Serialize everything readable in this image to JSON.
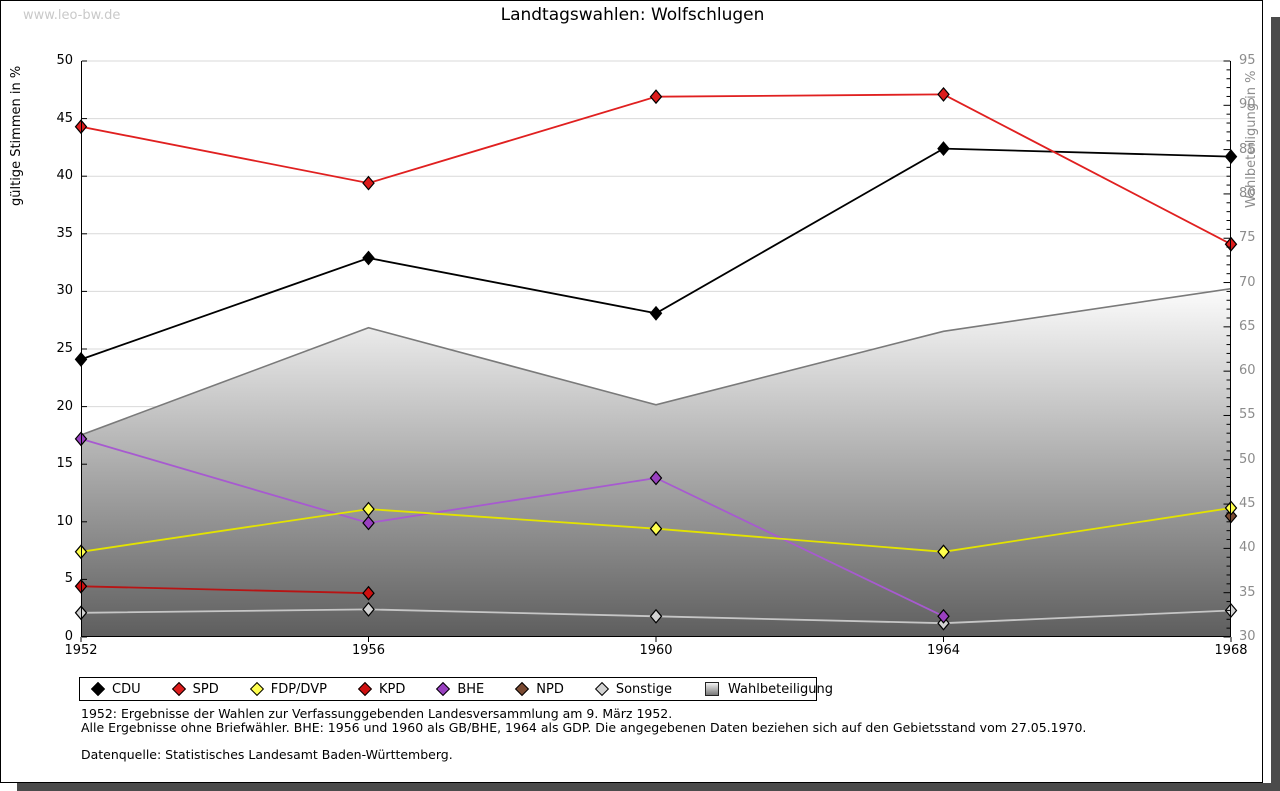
{
  "watermark": "www.leo-bw.de",
  "title": "Landtagswahlen: Wolfschlugen",
  "axes": {
    "left_title": "gültige Stimmen in %",
    "right_title": "Wahlbeteiligung in %",
    "left_ticks": [
      0,
      5,
      10,
      15,
      20,
      25,
      30,
      35,
      40,
      45,
      50
    ],
    "right_ticks": [
      30,
      35,
      40,
      45,
      50,
      55,
      60,
      65,
      70,
      75,
      80,
      85,
      90,
      95
    ],
    "years": [
      "1952",
      "1956",
      "1960",
      "1964",
      "1968"
    ]
  },
  "chart_data": {
    "type": "line",
    "title": "Landtagswahlen: Wolfschlugen",
    "x": [
      1952,
      1956,
      1960,
      1964,
      1968
    ],
    "left_axis": {
      "label": "gültige Stimmen in %",
      "range": [
        0,
        50
      ],
      "grid": true
    },
    "right_axis": {
      "label": "Wahlbeteiligung in %",
      "range": [
        30,
        95
      ],
      "grid": false
    },
    "legend_position": "bottom",
    "series": [
      {
        "name": "CDU",
        "axis": "left",
        "kind": "line",
        "marker": "diamond",
        "line_color": "#000000",
        "fill_color": "#000000",
        "values": [
          24.1,
          32.9,
          28.1,
          42.4,
          41.7
        ]
      },
      {
        "name": "SPD",
        "axis": "left",
        "kind": "line",
        "marker": "diamond",
        "line_color": "#e02020",
        "fill_color": "#dd1c1c",
        "values": [
          44.3,
          39.4,
          46.9,
          47.1,
          34.1
        ]
      },
      {
        "name": "FDP/DVP",
        "axis": "left",
        "kind": "line",
        "marker": "diamond",
        "line_color": "#e3e300",
        "fill_color": "#ffff4d",
        "values": [
          7.4,
          11.1,
          9.4,
          7.4,
          11.2
        ]
      },
      {
        "name": "KPD",
        "axis": "left",
        "kind": "line",
        "marker": "diamond",
        "line_color": "#b81414",
        "fill_color": "#cf1010",
        "values": [
          4.4,
          3.8,
          null,
          null,
          null
        ]
      },
      {
        "name": "BHE",
        "axis": "left",
        "kind": "line",
        "marker": "diamond",
        "line_color": "#a75ad0",
        "fill_color": "#9940c0",
        "values": [
          17.2,
          9.9,
          13.8,
          1.8,
          null
        ]
      },
      {
        "name": "NPD",
        "axis": "left",
        "kind": "line",
        "marker": "diamond",
        "line_color": "#7a4a32",
        "fill_color": "#7a4a32",
        "values": [
          null,
          null,
          null,
          null,
          10.5
        ]
      },
      {
        "name": "Sonstige",
        "axis": "left",
        "kind": "line",
        "marker": "diamond",
        "line_color": "#c6c6c6",
        "fill_color": "#d2d2d2",
        "values": [
          2.1,
          2.4,
          1.8,
          1.2,
          2.3
        ]
      },
      {
        "name": "Wahlbeteiligung",
        "axis": "right",
        "kind": "area",
        "marker": "none",
        "line_color": "#7a7a7a",
        "gradient": [
          "#fcfcfc",
          "#5e5e5e"
        ],
        "values": [
          52.8,
          64.9,
          56.2,
          64.5,
          69.3
        ]
      }
    ],
    "draw_order": [
      "Sonstige",
      "NPD",
      "BHE",
      "KPD",
      "FDP/DVP",
      "CDU",
      "SPD"
    ],
    "grid_color": "#d9d9d9"
  },
  "footnotes": [
    "1952: Ergebnisse der Wahlen zur Verfassunggebenden Landesversammlung am 9. März 1952.",
    "Alle Ergebnisse ohne Briefwähler. BHE: 1956 und 1960 als GB/BHE, 1964 als GDP. Die angegebenen Daten beziehen sich auf den Gebietsstand vom 27.05.1970.",
    "Datenquelle: Statistisches Landesamt Baden-Württemberg."
  ]
}
